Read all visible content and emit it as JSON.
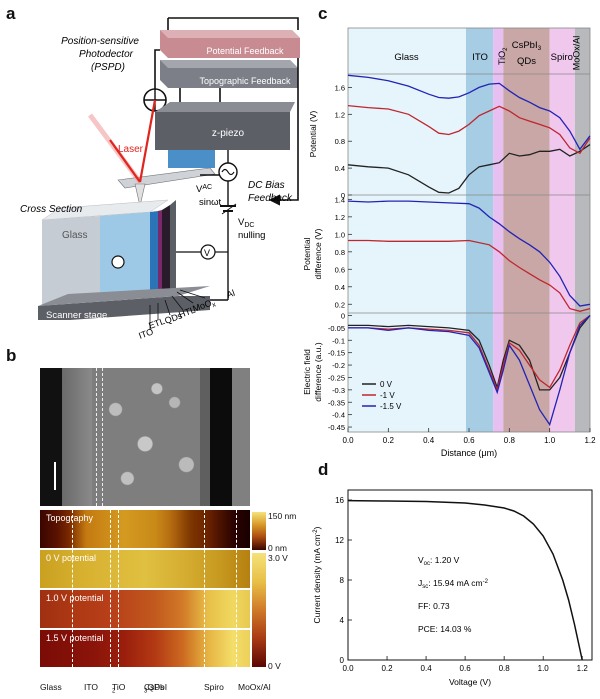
{
  "panels": {
    "a": "a",
    "b": "b",
    "c": "c",
    "d": "d"
  },
  "panel_a": {
    "potential_feedback": "Potential Feedback",
    "topographic_feedback": "Topographic Feedback",
    "pspd_line1": "Position-sensitive",
    "pspd_line2": "Photodector",
    "pspd_line3": "(PSPD)",
    "laser": "Laser",
    "z_piezo": "z-piezo",
    "vac": "V",
    "vac_sub": "AC",
    "sinwt": "sinωt",
    "dc_bias_1": "DC Bias",
    "dc_bias_2": "Feedback",
    "vdc": "V",
    "vdc_sub": "DC",
    "nulling": "nulling",
    "cross_section": "Cross Section",
    "glass": "Glass",
    "v_symbol": "V",
    "scanner_stage": "Scanner stage",
    "ito": "ITO",
    "etl": "ETL",
    "qds": "QDs",
    "htl": "HTL",
    "moox": "MoO",
    "moox_sub": "x",
    "al": "Al"
  },
  "panel_b": {
    "map_labels": [
      "Topography",
      "0 V potential",
      "1.0 V potential",
      "1.5 V potential"
    ],
    "topo_scale_top": "150 nm",
    "topo_scale_bottom": "0 nm",
    "pot_scale_top": "3.0 V",
    "pot_scale_bottom": "0 V",
    "layers": [
      "Glass",
      "ITO",
      "TiO",
      "CsPbI",
      "Spiro",
      "MoOx/Al"
    ],
    "tio_sub": "2",
    "cspbi_sub": "3",
    "cspbi_suffix": " QDs"
  },
  "panel_c": {
    "layer_labels": [
      "Glass",
      "ITO",
      "TiO",
      "CsPbI",
      "QDs",
      "Spiro",
      "MoOx/Al"
    ],
    "tio_sub": "2",
    "cspbi_sub": "3",
    "ylabel_top": "Potential (V)",
    "ylabel_mid_1": "Potential",
    "ylabel_mid_2": "difference (V)",
    "ylabel_bot_1": "Electric field",
    "ylabel_bot_2": "difference (a.u.)",
    "xlabel": "Distance (μm)",
    "legend": [
      "0 V",
      "-1 V",
      "-1.5 V"
    ],
    "yticks_top": [
      "0",
      "0.4",
      "0.8",
      "1.2",
      "1.6"
    ],
    "yticks_mid": [
      "0.2",
      "0.4",
      "0.6",
      "0.8",
      "1.0",
      "1.2",
      "1.4"
    ],
    "yticks_bot": [
      "0",
      "-0.05",
      "-0.1",
      "-0.15",
      "-0.2",
      "-0.25",
      "-0.3",
      "-0.35",
      "-0.4",
      "-0.45"
    ],
    "xticks": [
      "0.0",
      "0.2",
      "0.4",
      "0.6",
      "0.8",
      "1.0",
      "1.2"
    ]
  },
  "panel_d": {
    "ylabel": "Current density (mA cm",
    "ylabel_sup": "-2",
    "ylabel_end": ")",
    "xlabel": "Voltage (V)",
    "voc_label": "V",
    "voc_sub": "oc",
    "voc_value": ": 1.20 V",
    "jsc_label": "J",
    "jsc_sub": "sc",
    "jsc_value": ": 15.94 mA cm",
    "jsc_sup": "-2",
    "ff": "FF: 0.73",
    "pce": "PCE: 14.03 %",
    "yticks": [
      "0",
      "4",
      "8",
      "12",
      "16"
    ],
    "xticks": [
      "0.0",
      "0.2",
      "0.4",
      "0.6",
      "0.8",
      "1.0",
      "1.2"
    ]
  },
  "colors": {
    "glass": "#e6f5fb",
    "ito": "#a6cde3",
    "tio2": "#e7bff0",
    "qds": "#c9a7a7",
    "spiro": "#f0c8ee",
    "moox": "#b7b9bd",
    "series_0v": "#222222",
    "series_1v": "#c0262e",
    "series_15v": "#2323b5"
  },
  "chart_data": [
    {
      "type": "line",
      "ylabel": "Potential (V)",
      "ylim": [
        0,
        1.8
      ],
      "xlim": [
        0,
        1.2
      ],
      "series": [
        {
          "name": "0 V",
          "x": [
            0,
            0.1,
            0.2,
            0.3,
            0.4,
            0.45,
            0.5,
            0.55,
            0.6,
            0.65,
            0.7,
            0.75,
            0.8,
            0.85,
            0.9,
            0.95,
            1.0,
            1.05,
            1.1,
            1.15,
            1.2
          ],
          "y": [
            0.45,
            0.42,
            0.4,
            0.3,
            0.12,
            0.04,
            0.03,
            0.1,
            0.3,
            0.42,
            0.45,
            0.48,
            0.62,
            0.58,
            0.6,
            0.65,
            0.65,
            0.68,
            0.58,
            0.65,
            0.75
          ]
        },
        {
          "name": "-1 V",
          "x": [
            0,
            0.1,
            0.2,
            0.3,
            0.4,
            0.45,
            0.5,
            0.55,
            0.6,
            0.65,
            0.7,
            0.75,
            0.8,
            0.85,
            0.9,
            0.95,
            1.0,
            1.05,
            1.1,
            1.15,
            1.2
          ],
          "y": [
            1.33,
            1.3,
            1.28,
            1.2,
            1.02,
            0.92,
            0.9,
            0.95,
            1.05,
            1.18,
            1.25,
            1.32,
            1.25,
            1.15,
            1.1,
            1.05,
            1.0,
            0.9,
            0.7,
            0.62,
            0.85
          ]
        },
        {
          "name": "-1.5 V",
          "x": [
            0,
            0.1,
            0.2,
            0.3,
            0.4,
            0.45,
            0.5,
            0.55,
            0.6,
            0.65,
            0.7,
            0.75,
            0.8,
            0.85,
            0.9,
            0.95,
            1.0,
            1.05,
            1.1,
            1.15,
            1.2
          ],
          "y": [
            1.78,
            1.75,
            1.7,
            1.62,
            1.5,
            1.45,
            1.44,
            1.46,
            1.52,
            1.6,
            1.65,
            1.66,
            1.55,
            1.45,
            1.38,
            1.3,
            1.25,
            1.15,
            0.95,
            0.68,
            0.88
          ]
        }
      ]
    },
    {
      "type": "line",
      "ylabel": "Potential difference (V)",
      "ylim": [
        0.1,
        1.45
      ],
      "xlim": [
        0,
        1.2
      ],
      "series": [
        {
          "name": "-1 V",
          "x": [
            0,
            0.1,
            0.2,
            0.3,
            0.4,
            0.5,
            0.6,
            0.7,
            0.75,
            0.8,
            0.85,
            0.9,
            0.95,
            1.0,
            1.05,
            1.1,
            1.15,
            1.2
          ],
          "y": [
            0.93,
            0.93,
            0.92,
            0.92,
            0.92,
            0.92,
            0.93,
            0.88,
            0.8,
            0.7,
            0.62,
            0.55,
            0.48,
            0.42,
            0.33,
            0.15,
            0.12,
            0.15
          ]
        },
        {
          "name": "-1.5 V",
          "x": [
            0,
            0.1,
            0.2,
            0.3,
            0.4,
            0.5,
            0.6,
            0.65,
            0.7,
            0.75,
            0.8,
            0.85,
            0.9,
            0.95,
            1.0,
            1.05,
            1.1,
            1.15,
            1.2
          ],
          "y": [
            1.38,
            1.37,
            1.38,
            1.38,
            1.37,
            1.36,
            1.35,
            1.3,
            1.2,
            1.12,
            1.03,
            0.95,
            0.88,
            0.8,
            0.68,
            0.52,
            0.3,
            0.18,
            0.2
          ]
        }
      ]
    },
    {
      "type": "line",
      "ylabel": "Electric field difference (a.u.)",
      "ylim": [
        -0.47,
        0.01
      ],
      "xlim": [
        0,
        1.2
      ],
      "series": [
        {
          "name": "0 V",
          "x": [
            0,
            0.1,
            0.2,
            0.3,
            0.4,
            0.5,
            0.6,
            0.65,
            0.7,
            0.74,
            0.77,
            0.8,
            0.85,
            0.9,
            0.95,
            1.0,
            1.05,
            1.1,
            1.15,
            1.2
          ],
          "y": [
            -0.04,
            -0.04,
            -0.045,
            -0.04,
            -0.045,
            -0.05,
            -0.06,
            -0.1,
            -0.2,
            -0.29,
            -0.18,
            -0.1,
            -0.12,
            -0.18,
            -0.3,
            -0.3,
            -0.25,
            -0.15,
            -0.05,
            0
          ]
        },
        {
          "name": "-1 V",
          "x": [
            0,
            0.1,
            0.2,
            0.3,
            0.4,
            0.5,
            0.6,
            0.65,
            0.7,
            0.74,
            0.77,
            0.8,
            0.85,
            0.9,
            0.95,
            1.0,
            1.05,
            1.1,
            1.15,
            1.2
          ],
          "y": [
            -0.05,
            -0.05,
            -0.055,
            -0.05,
            -0.055,
            -0.06,
            -0.07,
            -0.12,
            -0.22,
            -0.3,
            -0.2,
            -0.11,
            -0.14,
            -0.2,
            -0.26,
            -0.29,
            -0.22,
            -0.12,
            -0.03,
            0
          ]
        },
        {
          "name": "-1.5 V",
          "x": [
            0,
            0.1,
            0.2,
            0.3,
            0.4,
            0.5,
            0.6,
            0.65,
            0.7,
            0.74,
            0.77,
            0.8,
            0.85,
            0.9,
            0.95,
            1.0,
            1.05,
            1.1,
            1.15,
            1.2
          ],
          "y": [
            -0.05,
            -0.05,
            -0.06,
            -0.05,
            -0.06,
            -0.065,
            -0.08,
            -0.13,
            -0.23,
            -0.31,
            -0.22,
            -0.12,
            -0.18,
            -0.28,
            -0.38,
            -0.44,
            -0.3,
            -0.15,
            -0.04,
            0
          ]
        }
      ]
    },
    {
      "type": "line",
      "xlabel": "Voltage (V)",
      "ylabel": "Current density (mA cm-2)",
      "xlim": [
        0,
        1.25
      ],
      "ylim": [
        0,
        17
      ],
      "series": [
        {
          "name": "",
          "x": [
            0,
            0.2,
            0.4,
            0.6,
            0.7,
            0.8,
            0.85,
            0.9,
            0.95,
            1.0,
            1.05,
            1.1,
            1.13,
            1.16,
            1.18,
            1.2
          ],
          "y": [
            15.94,
            15.9,
            15.85,
            15.7,
            15.5,
            15.2,
            14.9,
            14.4,
            13.6,
            12.4,
            10.6,
            8.0,
            6.0,
            3.6,
            1.8,
            0
          ]
        }
      ]
    }
  ]
}
